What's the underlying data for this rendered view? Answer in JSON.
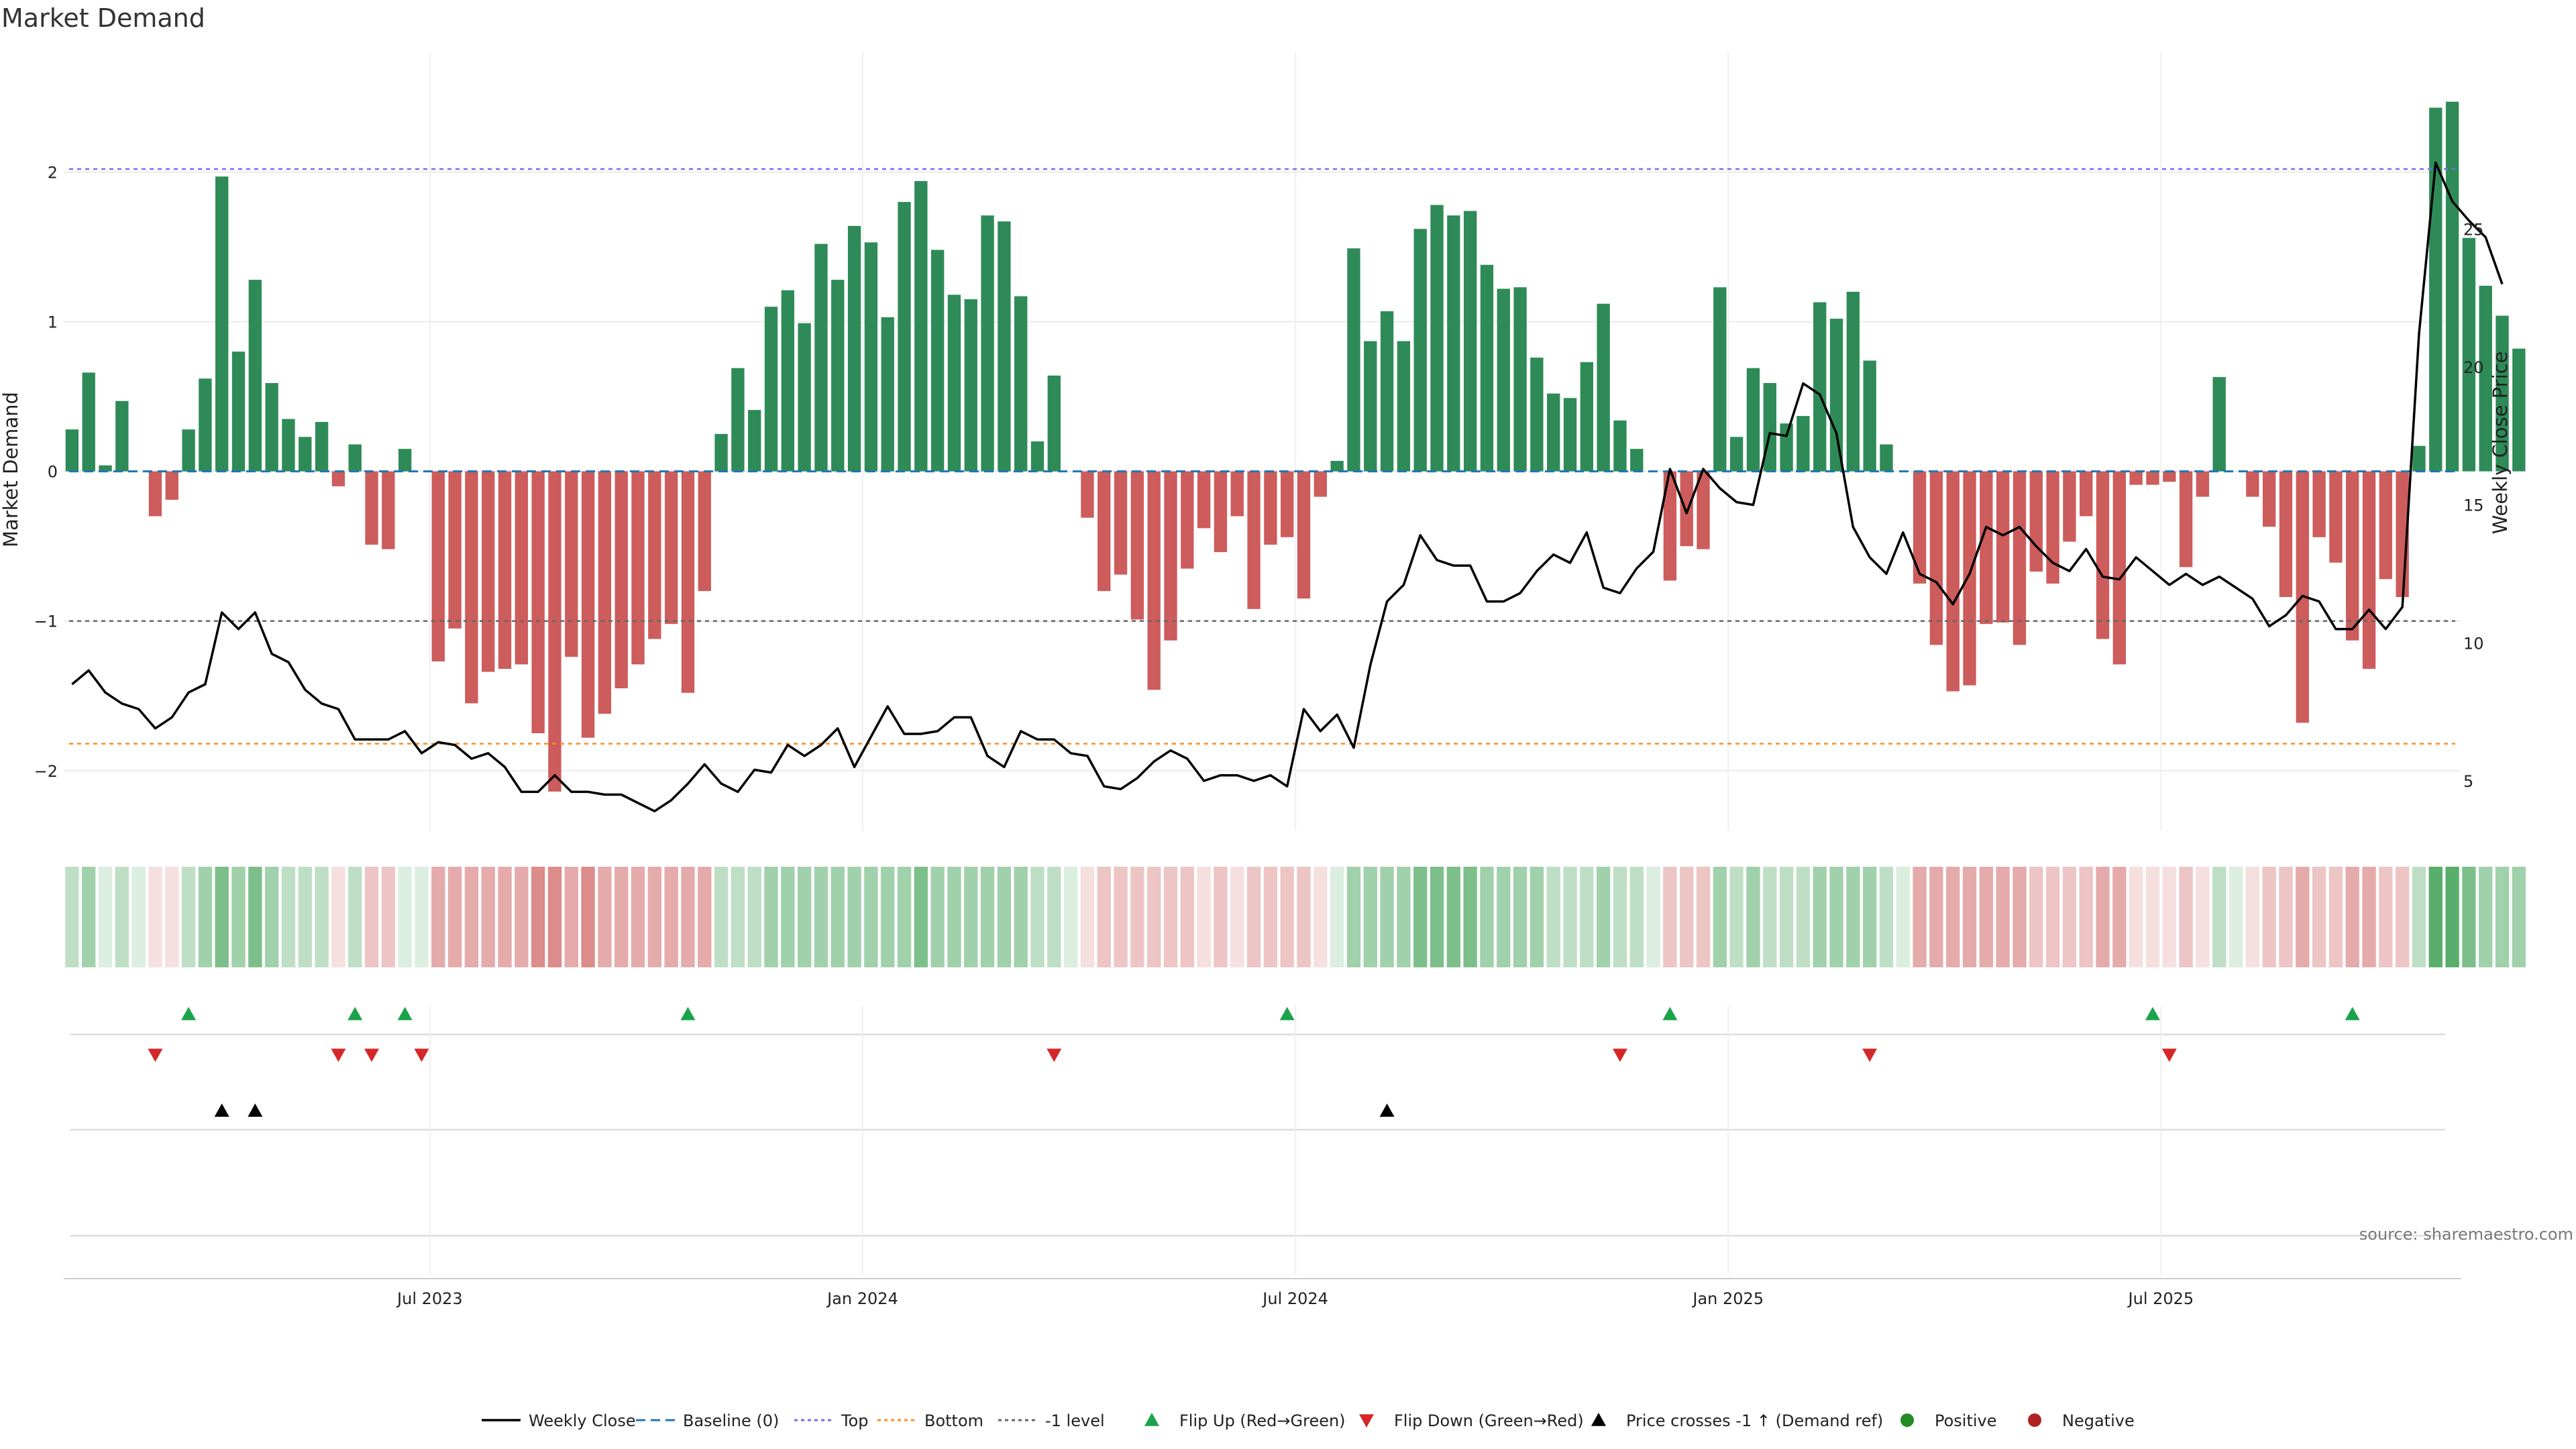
{
  "chart_data": {
    "type": "bar",
    "title": "Market Demand",
    "ylabel": "Market Demand",
    "y2label": "Weekly Close Price",
    "ylim": [
      -2.4,
      2.8
    ],
    "y2lim": [
      3.2,
      31.4
    ],
    "y_ticks": [
      -2,
      -1,
      0,
      1,
      2
    ],
    "y_tick_labels": [
      "−2",
      "−1",
      "0",
      "1",
      "2"
    ],
    "y2_ticks": [
      5,
      10,
      15,
      20,
      25
    ],
    "y2_tick_labels": [
      "5",
      "10",
      "15",
      "20",
      "25"
    ],
    "x_ticks": [
      21.5,
      47.5,
      73.5,
      99.5,
      125.5
    ],
    "x_tick_labels": [
      "Jul 2023",
      "Jan 2024",
      "Jul 2024",
      "Jan 2025",
      "Jul 2025"
    ],
    "x_count": 144,
    "top_level": 2.02,
    "bottom_level": -1.82,
    "minus_one_level": -1,
    "values": [
      0.28,
      0.66,
      0.04,
      0.47,
      0,
      -0.3,
      -0.19,
      0.28,
      0.62,
      1.97,
      0.8,
      1.28,
      0.59,
      0.35,
      0.23,
      0.33,
      -0.1,
      0.18,
      -0.49,
      -0.52,
      0.15,
      0,
      -1.27,
      -1.05,
      -1.55,
      -1.34,
      -1.32,
      -1.29,
      -1.75,
      -2.14,
      -1.24,
      -1.78,
      -1.62,
      -1.45,
      -1.29,
      -1.12,
      -1.02,
      -1.48,
      -0.8,
      0.25,
      0.69,
      0.41,
      1.1,
      1.21,
      0.99,
      1.52,
      1.28,
      1.64,
      1.53,
      1.03,
      1.8,
      1.94,
      1.48,
      1.18,
      1.15,
      1.71,
      1.67,
      1.17,
      0.2,
      0.64,
      0,
      -0.31,
      -0.8,
      -0.69,
      -0.99,
      -1.46,
      -1.13,
      -0.65,
      -0.38,
      -0.54,
      -0.3,
      -0.92,
      -0.49,
      -0.44,
      -0.85,
      -0.17,
      0.07,
      1.49,
      0.87,
      1.07,
      0.87,
      1.62,
      1.78,
      1.71,
      1.74,
      1.38,
      1.22,
      1.23,
      0.76,
      0.52,
      0.49,
      0.73,
      1.12,
      0.34,
      0.15,
      0,
      -0.73,
      -0.5,
      -0.52,
      1.23,
      0.23,
      0.69,
      0.59,
      0.32,
      0.37,
      1.13,
      1.02,
      1.2,
      0.74,
      0.18,
      0,
      -0.75,
      -1.16,
      -1.47,
      -1.43,
      -1.02,
      -1.01,
      -1.16,
      -0.67,
      -0.75,
      -0.47,
      -0.3,
      -1.12,
      -1.29,
      -0.09,
      -0.09,
      -0.07,
      -0.64,
      -0.17,
      0.63,
      0,
      -0.17,
      -0.37,
      -0.84,
      -1.68,
      -0.44,
      -0.61,
      -1.13,
      -1.32,
      -0.72,
      -0.84,
      0.17,
      2.43,
      2.47,
      1.56,
      1.24,
      1.04,
      0.82
    ],
    "weekly_close": [
      8.5,
      9,
      8.2,
      7.8,
      7.6,
      6.9,
      7.3,
      8.2,
      8.5,
      11.1,
      10.5,
      11.1,
      9.6,
      9.3,
      8.3,
      7.8,
      7.6,
      6.5,
      6.5,
      6.5,
      6.8,
      6,
      6.4,
      6.3,
      5.8,
      6,
      5.5,
      4.6,
      4.6,
      5.2,
      4.6,
      4.6,
      4.5,
      4.5,
      4.2,
      3.9,
      4.3,
      4.9,
      5.6,
      4.9,
      4.6,
      5.4,
      5.3,
      6.3,
      5.9,
      6.3,
      6.9,
      5.5,
      6.6,
      7.7,
      6.7,
      6.7,
      6.8,
      7.3,
      7.3,
      5.9,
      5.5,
      6.8,
      6.5,
      6.5,
      6,
      5.9,
      4.8,
      4.7,
      5.1,
      5.7,
      6.1,
      5.8,
      5,
      5.2,
      5.2,
      5,
      5.2,
      4.8,
      7.6,
      6.8,
      7.4,
      6.2,
      9.2,
      11.5,
      12.1,
      13.9,
      13,
      12.8,
      12.8,
      11.5,
      11.5,
      11.8,
      12.6,
      13.2,
      12.9,
      14.0,
      12,
      11.8,
      12.7,
      13.3,
      16.3,
      14.7,
      16.3,
      15.6,
      15.1,
      15,
      17.6,
      17.5,
      19.4,
      19,
      17.6,
      14.2,
      13.1,
      12.5,
      14,
      12.5,
      12.2,
      11.4,
      12.5,
      14.2,
      13.9,
      14.2,
      13.5,
      12.9,
      12.6,
      13.4,
      12.4,
      12.3,
      13.1,
      12.6,
      12.1,
      12.5,
      12.1,
      12.4,
      12,
      11.6,
      10.6,
      11,
      11.7,
      11.5,
      10.5,
      10.5,
      11.2,
      10.5,
      11.3,
      21.2,
      27.4,
      26,
      25.3,
      24.7,
      23
    ]
  },
  "flip_up_idx": [
    7,
    17,
    20,
    37,
    73,
    96,
    125,
    137
  ],
  "flip_down_idx": [
    5,
    16,
    18,
    21,
    59,
    93,
    108,
    126
  ],
  "price_cross_idx": [
    9,
    11,
    79
  ],
  "heat_levels": [
    2,
    3,
    1,
    2,
    1,
    1,
    1,
    2,
    3,
    4,
    3,
    4,
    3,
    2,
    2,
    2,
    1,
    2,
    2,
    2,
    1,
    1,
    3,
    3,
    3,
    3,
    3,
    3,
    4,
    4,
    3,
    4,
    3,
    3,
    3,
    3,
    3,
    3,
    3,
    2,
    2,
    2,
    3,
    3,
    3,
    3,
    3,
    3,
    3,
    3,
    3,
    4,
    3,
    3,
    3,
    3,
    3,
    3,
    2,
    2,
    1,
    1,
    2,
    2,
    2,
    2,
    2,
    2,
    1,
    2,
    1,
    2,
    2,
    2,
    2,
    1,
    1,
    3,
    3,
    3,
    3,
    4,
    4,
    4,
    4,
    3,
    3,
    3,
    3,
    2,
    2,
    2,
    3,
    2,
    2,
    1,
    2,
    2,
    2,
    3,
    2,
    3,
    2,
    2,
    2,
    3,
    3,
    3,
    3,
    2,
    1,
    3,
    3,
    3,
    3,
    3,
    3,
    3,
    2,
    2,
    2,
    2,
    3,
    3,
    1,
    1,
    1,
    2,
    1,
    2,
    1,
    1,
    2,
    2,
    3,
    2,
    2,
    3,
    3,
    2,
    2,
    2,
    5,
    5,
    4,
    3,
    3,
    3
  ],
  "colors": {
    "positive_bar": "#2e8b57",
    "negative_bar": "#cd5c5c",
    "heat_positive": "#3a9e4f",
    "heat_negative": "#c8504f",
    "top_line": "#7b68ee",
    "bottom_line": "#ff8c1a",
    "minus_one_line": "#666666",
    "baseline": "#1f77b4",
    "flip_up": "#1aa34a",
    "flip_down": "#d62728",
    "price_cross": "#000000",
    "positive_dot": "#228b22",
    "negative_dot": "#b22222"
  },
  "legend": [
    {
      "label": "Weekly Close",
      "type": "line"
    },
    {
      "label": "Baseline (0)",
      "type": "dashed"
    },
    {
      "label": "Top",
      "type": "dotted-top"
    },
    {
      "label": "Bottom",
      "type": "dotted-bottom"
    },
    {
      "label": "-1 level",
      "type": "dotted-minus"
    },
    {
      "label": "Flip Up (Red→Green)",
      "type": "tri-up-green"
    },
    {
      "label": "Flip Down (Green→Red)",
      "type": "tri-down-red"
    },
    {
      "label": "Price crosses -1 ↑ (Demand ref)",
      "type": "tri-up-black"
    },
    {
      "label": "Positive",
      "type": "dot-green"
    },
    {
      "label": "Negative",
      "type": "dot-red"
    }
  ],
  "source": "source: sharemaestro.com"
}
